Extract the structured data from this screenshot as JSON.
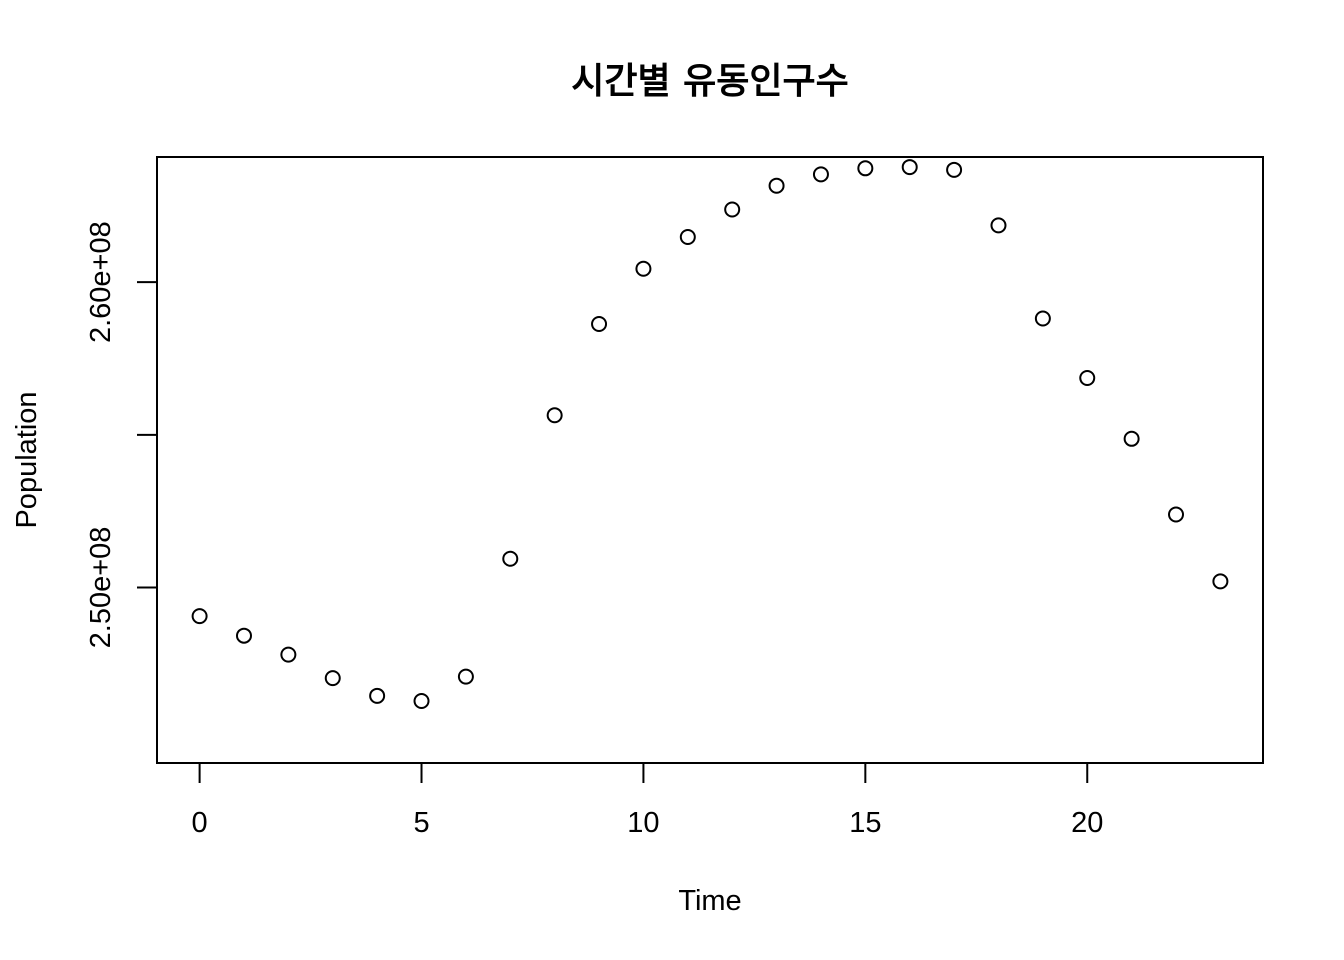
{
  "chart_data": {
    "type": "scatter",
    "title": "시간별 유동인구수",
    "xlabel": "Time",
    "ylabel": "Population",
    "xlim": [
      -0.96,
      23.96
    ],
    "ylim": [
      244250000,
      264100000
    ],
    "x_ticks": [
      {
        "value": 0,
        "label": "0"
      },
      {
        "value": 5,
        "label": "5"
      },
      {
        "value": 10,
        "label": "10"
      },
      {
        "value": 15,
        "label": "15"
      },
      {
        "value": 20,
        "label": "20"
      }
    ],
    "y_ticks": [
      {
        "value": 250000000,
        "label": "2.50e+08"
      },
      {
        "value": 255000000,
        "label": ""
      },
      {
        "value": 260000000,
        "label": "2.60e+08"
      }
    ],
    "grid": false,
    "legend": false,
    "marker": "open-circle",
    "series": [
      {
        "x": [
          0,
          1,
          2,
          3,
          4,
          5,
          6,
          7,
          8,
          9,
          10,
          11,
          12,
          13,
          14,
          15,
          16,
          17,
          18,
          19,
          20,
          21,
          22,
          23
        ],
        "values": [
          249060000,
          248420000,
          247800000,
          247030000,
          246450000,
          246280000,
          247080000,
          250940000,
          255640000,
          258630000,
          260440000,
          261480000,
          262380000,
          263160000,
          263530000,
          263730000,
          263770000,
          263680000,
          261860000,
          258810000,
          256860000,
          254870000,
          252390000,
          250200000
        ]
      }
    ]
  }
}
